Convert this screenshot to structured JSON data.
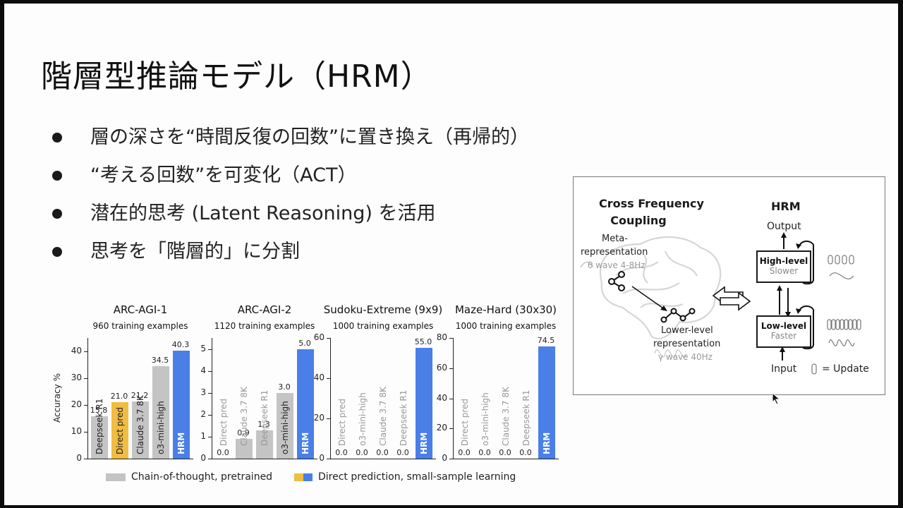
{
  "slide": {
    "title": "階層型推論モデル（HRM）",
    "bullets": [
      "層の深さを“時間反復の回数”に置き換え（再帰的）",
      "“考える回数”を可変化（ACT）",
      "潜在的思考 (Latent Reasoning) を活用",
      "思考を「階層的」に分割"
    ]
  },
  "colors": {
    "cot_gray": "#c4c4c4",
    "direct_yellow": "#f0bc42",
    "hrm_blue": "#4a7fe8"
  },
  "chart_data": [
    {
      "type": "bar",
      "title": "ARC-AGI-1",
      "subtitle": "960 training examples",
      "ylabel": "Accuracy %",
      "ylim": [
        0,
        45
      ],
      "yticks": [
        0,
        10,
        20,
        30,
        40
      ],
      "categories": [
        "Deepseek R1",
        "Direct pred",
        "Claude 3.7 8K",
        "o3-mini-high",
        "HRM"
      ],
      "values": [
        15.8,
        21.0,
        21.2,
        34.5,
        40.3
      ],
      "value_labels": [
        "15.8",
        "21.0",
        "21.2",
        "34.5",
        "40.3"
      ],
      "groups": [
        "cot",
        "direct",
        "cot",
        "cot",
        "hrm"
      ]
    },
    {
      "type": "bar",
      "title": "ARC-AGI-2",
      "subtitle": "1120 training examples",
      "ylim": [
        0,
        5.5
      ],
      "yticks": [
        0,
        1,
        2,
        3,
        4,
        5
      ],
      "categories": [
        "Direct pred",
        "Claude 3.7 8K",
        "Deepseek R1",
        "o3-mini-high",
        "HRM"
      ],
      "values": [
        0.0,
        0.9,
        1.3,
        3.0,
        5.0
      ],
      "value_labels": [
        "0.0",
        "0.9",
        "1.3",
        "3.0",
        "5.0"
      ],
      "groups": [
        "direct",
        "cot",
        "cot",
        "cot",
        "hrm"
      ]
    },
    {
      "type": "bar",
      "title": "Sudoku-Extreme (9x9)",
      "subtitle": "1000 training examples",
      "ylim": [
        0,
        60
      ],
      "yticks": [
        0,
        20,
        40,
        60
      ],
      "categories": [
        "Direct pred",
        "o3-mini-high",
        "Claude 3.7 8K",
        "Deepseek R1",
        "HRM"
      ],
      "values": [
        0.0,
        0.0,
        0.0,
        0.0,
        55.0
      ],
      "value_labels": [
        "0.0",
        "0.0",
        "0.0",
        "0.0",
        "55.0"
      ],
      "groups": [
        "direct",
        "cot",
        "cot",
        "cot",
        "hrm"
      ]
    },
    {
      "type": "bar",
      "title": "Maze-Hard (30x30)",
      "subtitle": "1000 training examples",
      "ylim": [
        0,
        80
      ],
      "yticks": [
        0,
        20,
        40,
        60,
        80
      ],
      "categories": [
        "Direct pred",
        "o3-mini-high",
        "Claude 3.7 8K",
        "Deepseek R1",
        "HRM"
      ],
      "values": [
        0.0,
        0.0,
        0.0,
        0.0,
        74.5
      ],
      "value_labels": [
        "0.0",
        "0.0",
        "0.0",
        "0.0",
        "74.5"
      ],
      "groups": [
        "direct",
        "cot",
        "cot",
        "cot",
        "hrm"
      ]
    }
  ],
  "legend": {
    "cot": "Chain-of-thought, pretrained",
    "direct": "Direct prediction, small-sample learning"
  },
  "diagram": {
    "left_title_1": "Cross Frequency",
    "left_title_2": "Coupling",
    "meta_1": "Meta-",
    "meta_2": "representation",
    "theta": "θ wave 4-8Hz",
    "lower_1": "Lower-level",
    "lower_2": "representation",
    "gamma": "γ wave 40Hz",
    "right_title": "HRM",
    "output": "Output",
    "high_level": "High-level",
    "slower": "Slower",
    "low_level": "Low-level",
    "faster": "Faster",
    "input": "Input",
    "update": "= Update"
  }
}
